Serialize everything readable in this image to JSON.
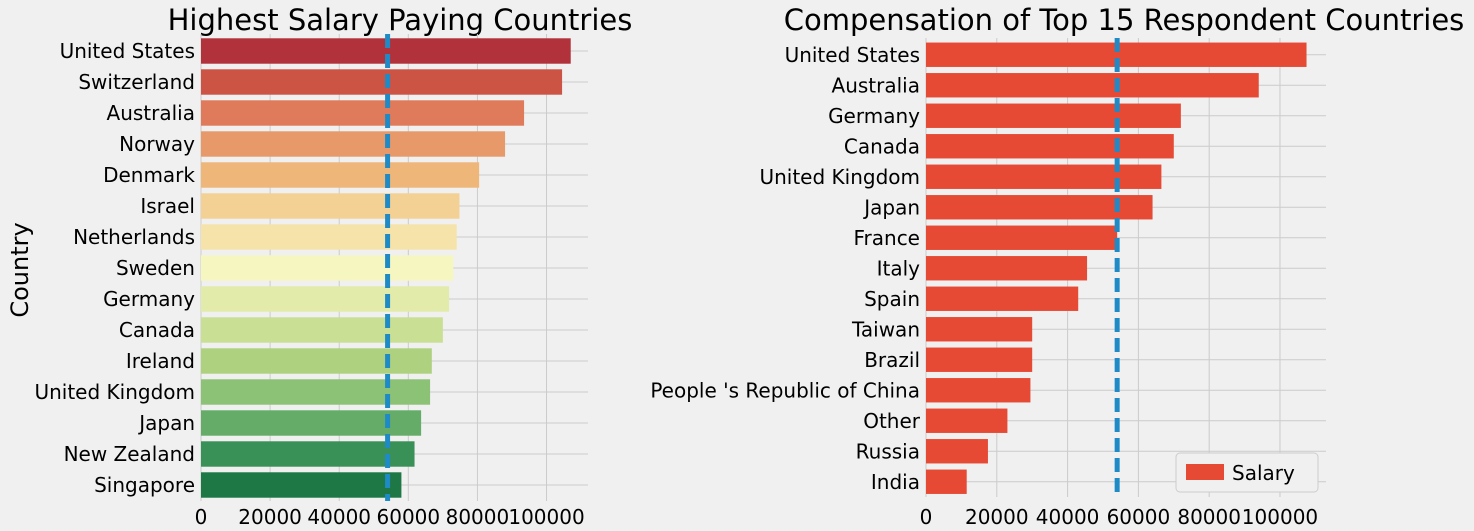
{
  "chart_data": [
    {
      "type": "bar",
      "orientation": "horizontal",
      "title": "Highest Salary Paying Countries",
      "ylabel": "Country",
      "xlabel": "",
      "categories": [
        "United States",
        "Switzerland",
        "Australia",
        "Norway",
        "Denmark",
        "Israel",
        "Netherlands",
        "Sweden",
        "Germany",
        "Canada",
        "Ireland",
        "United Kingdom",
        "Japan",
        "New Zealand",
        "Singapore"
      ],
      "values": [
        107000,
        104500,
        93500,
        88000,
        80500,
        74800,
        74000,
        73000,
        71800,
        70000,
        66800,
        66300,
        63700,
        61800,
        58000
      ],
      "colors": [
        "#b2323b",
        "#cc5445",
        "#df7a5a",
        "#e8996a",
        "#efb67a",
        "#f3d093",
        "#f5e3a9",
        "#f6f7c0",
        "#e2ebaa",
        "#c9df93",
        "#aed17f",
        "#8cc275",
        "#65ac69",
        "#3a9158",
        "#1e7846"
      ],
      "reference_line": {
        "value": 54000,
        "style": "dashed",
        "color": "#1f8bc6"
      },
      "xticks": [
        "0",
        "20000",
        "40000",
        "60000",
        "80000",
        "100000"
      ],
      "xlim": [
        0,
        112000
      ],
      "grid": true
    },
    {
      "type": "bar",
      "orientation": "horizontal",
      "title": "Compensation of Top 15 Respondent Countries",
      "xlabel": "",
      "ylabel": "",
      "categories": [
        "United States",
        "Australia",
        "Germany",
        "Canada",
        "United Kingdom",
        "Japan",
        "France",
        "Italy",
        "Spain",
        "Taiwan",
        "Brazil",
        "People 's Republic of China",
        "Other",
        "Russia",
        "India"
      ],
      "series": [
        {
          "name": "Salary",
          "color": "#e64a35",
          "values": [
            107500,
            94000,
            72000,
            70000,
            66500,
            64000,
            54000,
            45500,
            43000,
            30000,
            30000,
            29500,
            23000,
            17500,
            11500
          ]
        }
      ],
      "reference_line": {
        "value": 54000,
        "style": "dashed",
        "color": "#1f8bc6"
      },
      "xticks": [
        "0",
        "20000",
        "40000",
        "60000",
        "80000",
        "100000"
      ],
      "xlim": [
        0,
        113000
      ],
      "grid": true,
      "legend": {
        "position": "lower-right",
        "entries": [
          "Salary"
        ]
      }
    }
  ]
}
